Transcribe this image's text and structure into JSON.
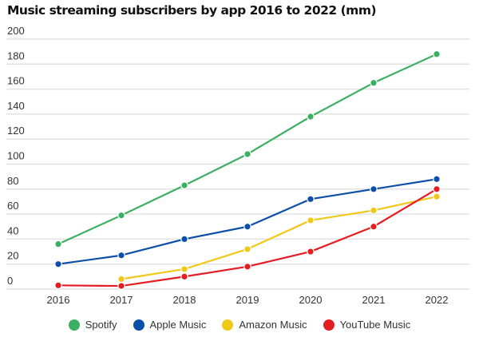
{
  "chart_data": {
    "type": "line",
    "title": "Music streaming subscribers by app 2016 to 2022 (mm)",
    "xlabel": "",
    "ylabel": "",
    "x": [
      "2016",
      "2017",
      "2018",
      "2019",
      "2020",
      "2021",
      "2022"
    ],
    "ylim": [
      0,
      200
    ],
    "yticks": [
      "0",
      "20",
      "40",
      "60",
      "80",
      "100",
      "120",
      "140",
      "160",
      "180",
      "200"
    ],
    "grid": true,
    "legend_position": "bottom",
    "series": [
      {
        "name": "Spotify",
        "color": "#3cb062",
        "values": [
          36,
          59,
          83,
          108,
          138,
          165,
          188
        ]
      },
      {
        "name": "Apple Music",
        "color": "#0b4fa8",
        "values": [
          20,
          27,
          40,
          50,
          72,
          80,
          88
        ]
      },
      {
        "name": "Amazon Music",
        "color": "#f0c81a",
        "values": [
          null,
          8,
          16,
          32,
          55,
          63,
          74
        ]
      },
      {
        "name": "YouTube Music",
        "color": "#e41d23",
        "values": [
          3,
          2.5,
          10,
          18,
          30,
          50,
          80
        ]
      }
    ]
  }
}
